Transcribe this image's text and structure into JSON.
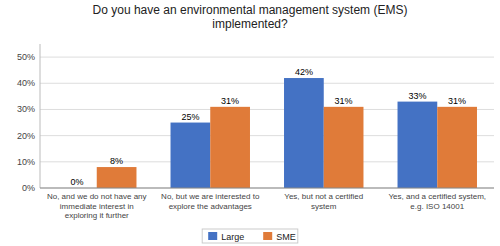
{
  "chart_data": {
    "type": "bar",
    "title": "Do you have an environmental management system (EMS)\nimplemented?",
    "categories": [
      "No, and we do not have any\nimmediate interest in\nexploring it further",
      "No, but we are interested to\nexplore the advantages",
      "Yes, but not a certified\nsystem",
      "Yes, and a certified system,\ne.g. ISO 14001"
    ],
    "series": [
      {
        "name": "Large",
        "color": "#4472C4",
        "values": [
          0,
          25,
          42,
          33
        ],
        "value_labels": [
          "0%",
          "25%",
          "42%",
          "33%"
        ]
      },
      {
        "name": "SME",
        "color": "#E07B39",
        "values": [
          8,
          31,
          31,
          31
        ],
        "value_labels": [
          "8%",
          "31%",
          "31%",
          "31%"
        ]
      }
    ],
    "ylim": [
      0,
      55
    ],
    "yticks": [
      {
        "value": 0,
        "label": "0%"
      },
      {
        "value": 10,
        "label": "10%"
      },
      {
        "value": 20,
        "label": "20%"
      },
      {
        "value": 30,
        "label": "30%"
      },
      {
        "value": 40,
        "label": "40%"
      },
      {
        "value": 50,
        "label": "50%"
      }
    ],
    "grid": true,
    "data_labels": true,
    "legend": "bottom"
  }
}
